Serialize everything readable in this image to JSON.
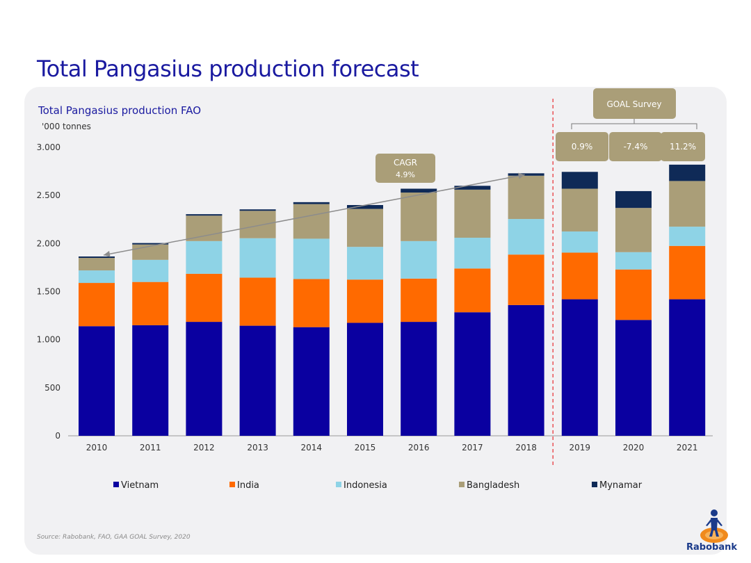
{
  "page": {
    "title": "Total Pangasius production forecast",
    "source": "Source: Rabobank, FAO, GAA GOAL Survey, 2020",
    "logo_text": "Rabobank"
  },
  "colors": {
    "Vietnam": "#0a00a0",
    "India": "#ff6a00",
    "Indonesia": "#8ed3e6",
    "Bangladesh": "#aa9e78",
    "Mynamar": "#0f2a57",
    "title": "#1a1aa0",
    "annotation_box": "#aa9e78",
    "divider": "#e8383d",
    "arrow": "#8c8c8c"
  },
  "chart_data": {
    "type": "bar",
    "stacked": true,
    "title": "Total Pangasius production FAO",
    "subtitle": "'000 tonnes",
    "categories": [
      "2010",
      "2011",
      "2012",
      "2013",
      "2014",
      "2015",
      "2016",
      "2017",
      "2018",
      "2019",
      "2020",
      "2021"
    ],
    "series": [
      {
        "name": "Vietnam",
        "values": [
          1140,
          1150,
          1185,
          1145,
          1130,
          1175,
          1185,
          1285,
          1360,
          1420,
          1205,
          1420
        ]
      },
      {
        "name": "India",
        "values": [
          450,
          450,
          500,
          500,
          500,
          450,
          450,
          455,
          525,
          485,
          525,
          555
        ]
      },
      {
        "name": "Indonesia",
        "values": [
          130,
          230,
          340,
          410,
          420,
          340,
          390,
          320,
          370,
          220,
          180,
          200
        ]
      },
      {
        "name": "Bangladesh",
        "values": [
          130,
          160,
          265,
          285,
          360,
          395,
          505,
          500,
          450,
          445,
          460,
          475
        ]
      },
      {
        "name": "Mynamar",
        "values": [
          15,
          15,
          15,
          15,
          20,
          40,
          40,
          40,
          25,
          175,
          175,
          170
        ]
      }
    ],
    "ylim": [
      0,
      3000
    ],
    "yticks": [
      0,
      500,
      1000,
      1500,
      2000,
      2500,
      3000
    ],
    "ytick_labels": [
      "0",
      "500",
      "1.000",
      "1.500",
      "2.000",
      "2.500",
      "3.000"
    ],
    "legend_position": "bottom",
    "annotations": {
      "cagr": {
        "label": "CAGR",
        "value": "4.9%"
      },
      "goal_survey": {
        "label": "GOAL Survey",
        "growth": [
          "0.9%",
          "-7.4%",
          "11.2%"
        ]
      }
    },
    "forecast_divider_after": "2018"
  }
}
